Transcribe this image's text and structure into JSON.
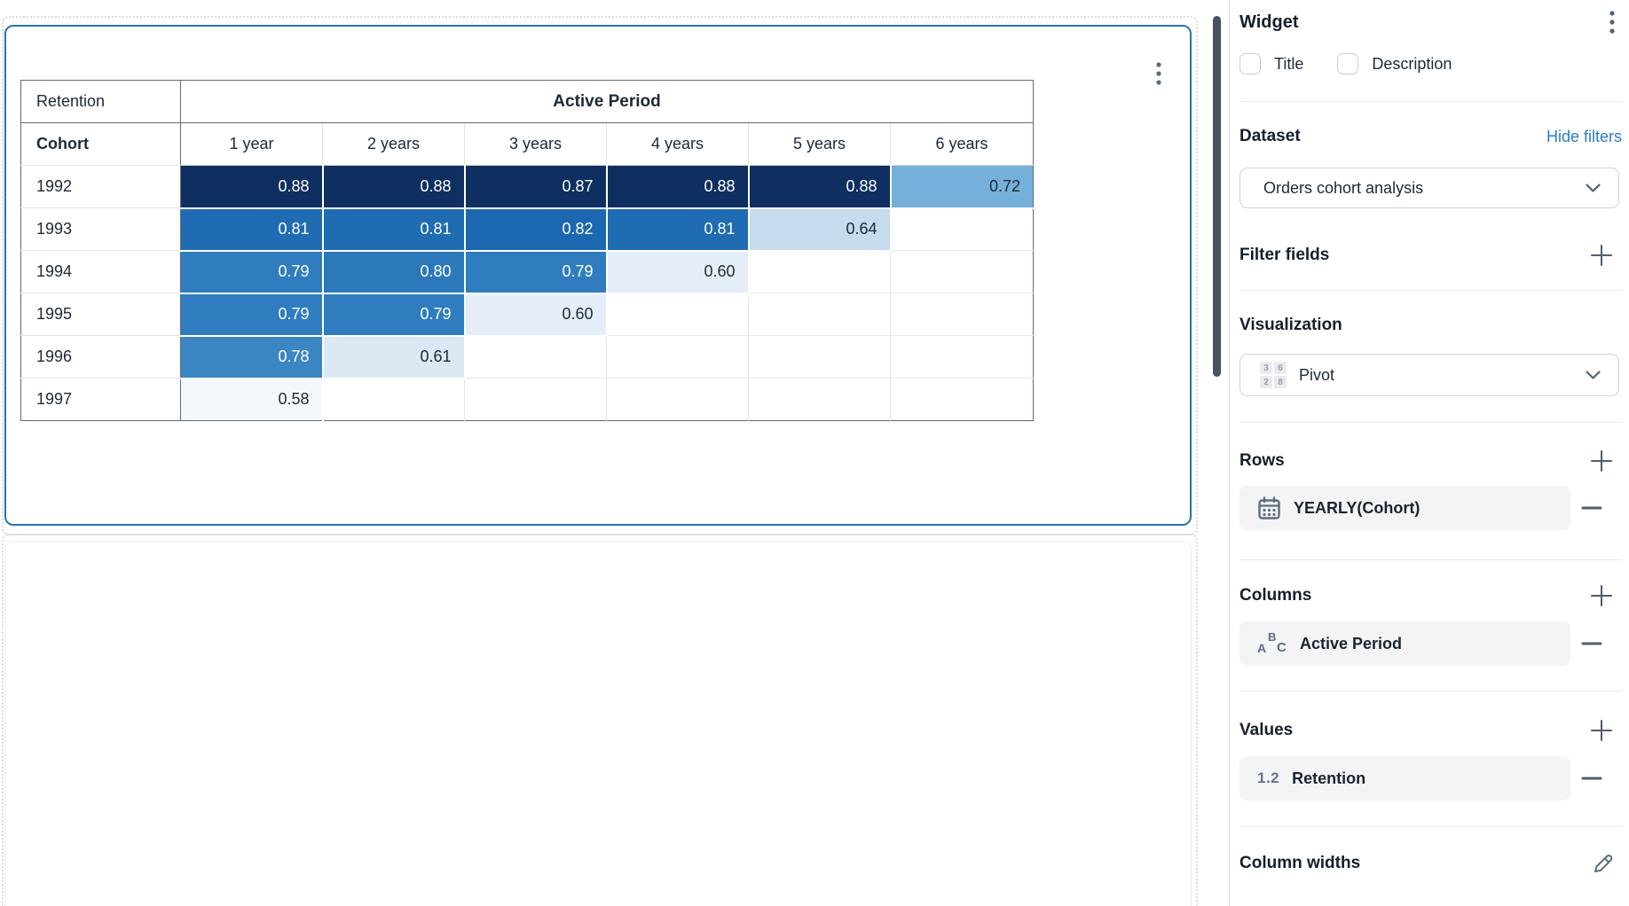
{
  "colors": {
    "selection_blue": "#2a72b4",
    "link_blue": "#2b7ccb",
    "icon_slate": "#546274",
    "white_text_min": 0.78,
    "heatmap": {
      "0.88": "#0f2f61",
      "0.87": "#0f2f61",
      "0.82": "#1c68b0",
      "0.81": "#1f6cb3",
      "0.80": "#2b79bb",
      "0.79": "#2f7dbe",
      "0.78": "#3b86c3",
      "0.72": "#74b0d9",
      "0.64": "#c6dbee",
      "0.61": "#dce8f4",
      "0.60": "#e5eef8",
      "0.58": "#f3f8fd"
    }
  },
  "chart_data": {
    "type": "heatmap",
    "measure": "Retention",
    "row_dimension": "Cohort",
    "column_group": "Active Period",
    "columns": [
      "1 year",
      "2 years",
      "3 years",
      "4 years",
      "5 years",
      "6 years"
    ],
    "rows": [
      {
        "cohort": "1992",
        "values": [
          0.88,
          0.88,
          0.87,
          0.88,
          0.88,
          0.72
        ]
      },
      {
        "cohort": "1993",
        "values": [
          0.81,
          0.81,
          0.82,
          0.81,
          0.64,
          null
        ]
      },
      {
        "cohort": "1994",
        "values": [
          0.79,
          0.8,
          0.79,
          0.6,
          null,
          null
        ]
      },
      {
        "cohort": "1995",
        "values": [
          0.79,
          0.79,
          0.6,
          null,
          null,
          null
        ]
      },
      {
        "cohort": "1996",
        "values": [
          0.78,
          0.61,
          null,
          null,
          null,
          null
        ]
      },
      {
        "cohort": "1997",
        "values": [
          0.58,
          null,
          null,
          null,
          null,
          null
        ]
      }
    ]
  },
  "sidebar": {
    "title": "Widget",
    "checkboxes": [
      {
        "label": "Title",
        "checked": false
      },
      {
        "label": "Description",
        "checked": false
      }
    ],
    "dataset": {
      "heading": "Dataset",
      "link": "Hide filters",
      "selected": "Orders cohort analysis"
    },
    "filter_fields": {
      "heading": "Filter fields"
    },
    "visualization": {
      "heading": "Visualization",
      "selected": "Pivot",
      "icon_numbers": [
        "3",
        "6",
        "2",
        "8"
      ]
    },
    "rows_section": {
      "heading": "Rows",
      "item": {
        "label": "YEARLY(Cohort)"
      }
    },
    "columns_section": {
      "heading": "Columns",
      "item": {
        "label": "Active Period",
        "icon_letters": [
          "A",
          "B",
          "C"
        ]
      }
    },
    "values_section": {
      "heading": "Values",
      "item": {
        "label": "Retention",
        "icon_text": "1.2"
      }
    },
    "column_widths": {
      "heading": "Column widths"
    }
  }
}
